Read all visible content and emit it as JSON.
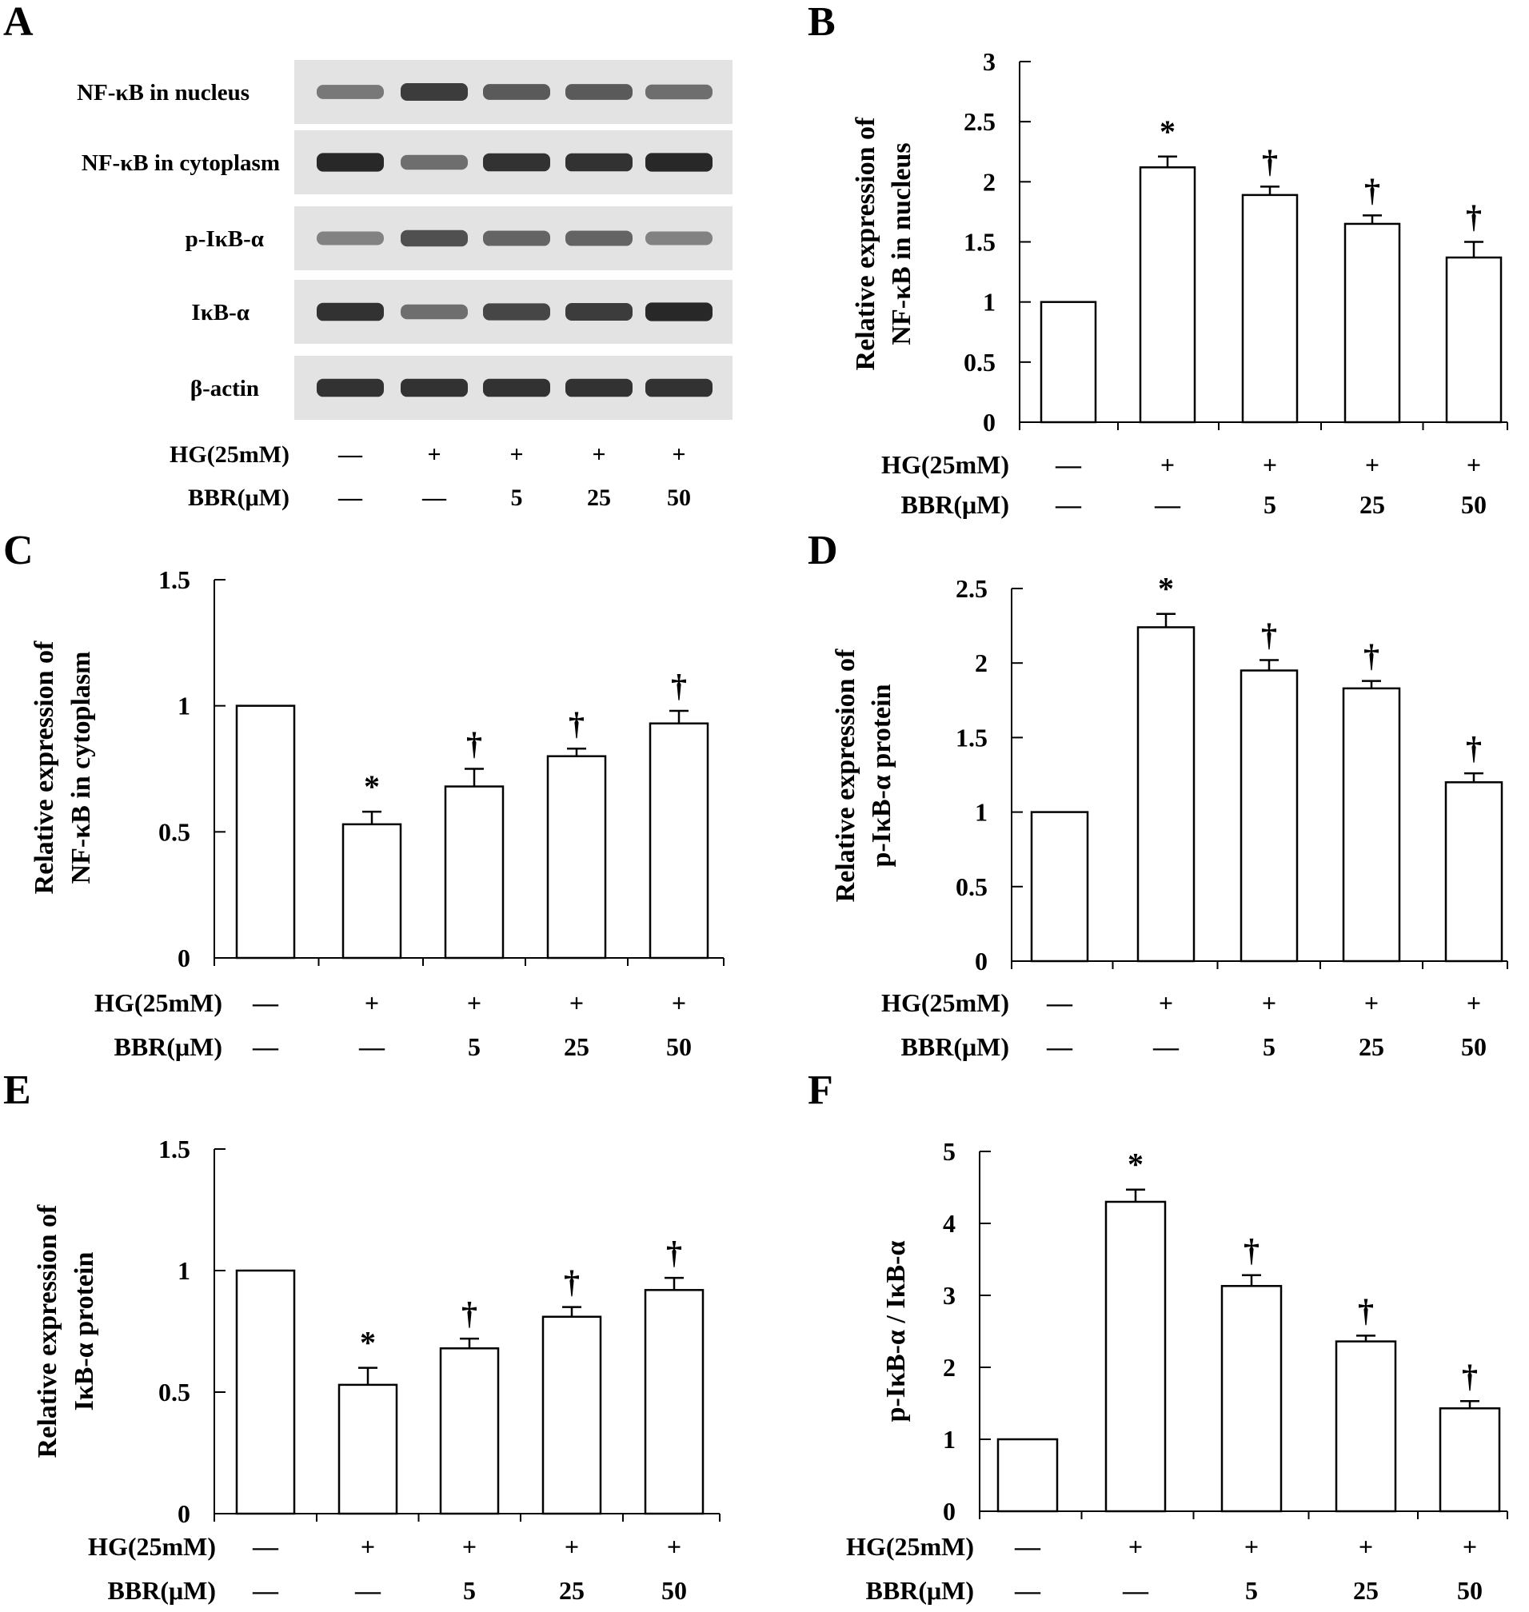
{
  "panel_labels": [
    "A",
    "B",
    "C",
    "D",
    "E",
    "F"
  ],
  "blot": {
    "rows": [
      "NF-κB in nucleus",
      "NF-κB in cytoplasm",
      "p-IκB-α",
      "IκB-α",
      "β-actin"
    ],
    "intensity": [
      [
        0.55,
        0.85,
        0.7,
        0.7,
        0.6
      ],
      [
        0.95,
        0.6,
        0.9,
        0.9,
        0.95
      ],
      [
        0.5,
        0.75,
        0.65,
        0.65,
        0.5
      ],
      [
        0.9,
        0.6,
        0.8,
        0.85,
        0.95
      ],
      [
        0.9,
        0.9,
        0.9,
        0.9,
        0.9
      ]
    ]
  },
  "conditions": {
    "hg_label": "HG(25mM)",
    "bbr_label": "BBR(μM)",
    "hg": [
      "—",
      "+",
      "+",
      "+",
      "+"
    ],
    "bbr": [
      "—",
      "—",
      "5",
      "25",
      "50"
    ]
  },
  "chart_data": [
    {
      "panel": "B",
      "type": "bar",
      "ylabel": [
        "Relative expression of",
        "NF-κB in nucleus"
      ],
      "ylim": [
        0,
        3
      ],
      "yticks": [
        "0",
        "0.5",
        "1",
        "1.5",
        "2",
        "2.5",
        "3"
      ],
      "values": [
        1.0,
        2.12,
        1.89,
        1.65,
        1.37
      ],
      "errors": [
        0.0,
        0.09,
        0.07,
        0.07,
        0.13
      ],
      "marks": [
        "",
        "*",
        "†",
        "†",
        "†"
      ]
    },
    {
      "panel": "C",
      "type": "bar",
      "ylabel": [
        "Relative expression of",
        "NF-κB in cytoplasm"
      ],
      "ylim": [
        0,
        1.5
      ],
      "yticks": [
        "0",
        "0.5",
        "1",
        "1.5"
      ],
      "values": [
        1.0,
        0.53,
        0.68,
        0.8,
        0.93
      ],
      "errors": [
        0.0,
        0.05,
        0.07,
        0.03,
        0.05
      ],
      "marks": [
        "",
        "*",
        "†",
        "†",
        "†"
      ]
    },
    {
      "panel": "D",
      "type": "bar",
      "ylabel": [
        "Relative expression of",
        "p-IκB-α protein"
      ],
      "ylim": [
        0,
        2.5
      ],
      "yticks": [
        "0",
        "0.5",
        "1",
        "1.5",
        "2",
        "2.5"
      ],
      "values": [
        1.0,
        2.24,
        1.95,
        1.83,
        1.2
      ],
      "errors": [
        0.0,
        0.09,
        0.07,
        0.05,
        0.06
      ],
      "marks": [
        "",
        "*",
        "†",
        "†",
        "†"
      ]
    },
    {
      "panel": "E",
      "type": "bar",
      "ylabel": [
        "Relative expression of",
        "IκB-α protein"
      ],
      "ylim": [
        0,
        1.5
      ],
      "yticks": [
        "0",
        "0.5",
        "1",
        "1.5"
      ],
      "values": [
        1.0,
        0.53,
        0.68,
        0.81,
        0.92
      ],
      "errors": [
        0.0,
        0.07,
        0.04,
        0.04,
        0.05
      ],
      "marks": [
        "",
        "*",
        "†",
        "†",
        "†"
      ]
    },
    {
      "panel": "F",
      "type": "bar",
      "ylabel": [
        "p-IκB-α / IκB-α"
      ],
      "ylim": [
        0,
        5
      ],
      "yticks": [
        "0",
        "1",
        "2",
        "3",
        "4",
        "5"
      ],
      "values": [
        1.0,
        4.3,
        3.13,
        2.36,
        1.43
      ],
      "errors": [
        0.0,
        0.17,
        0.15,
        0.08,
        0.1
      ],
      "marks": [
        "",
        "*",
        "†",
        "†",
        "†"
      ]
    }
  ]
}
